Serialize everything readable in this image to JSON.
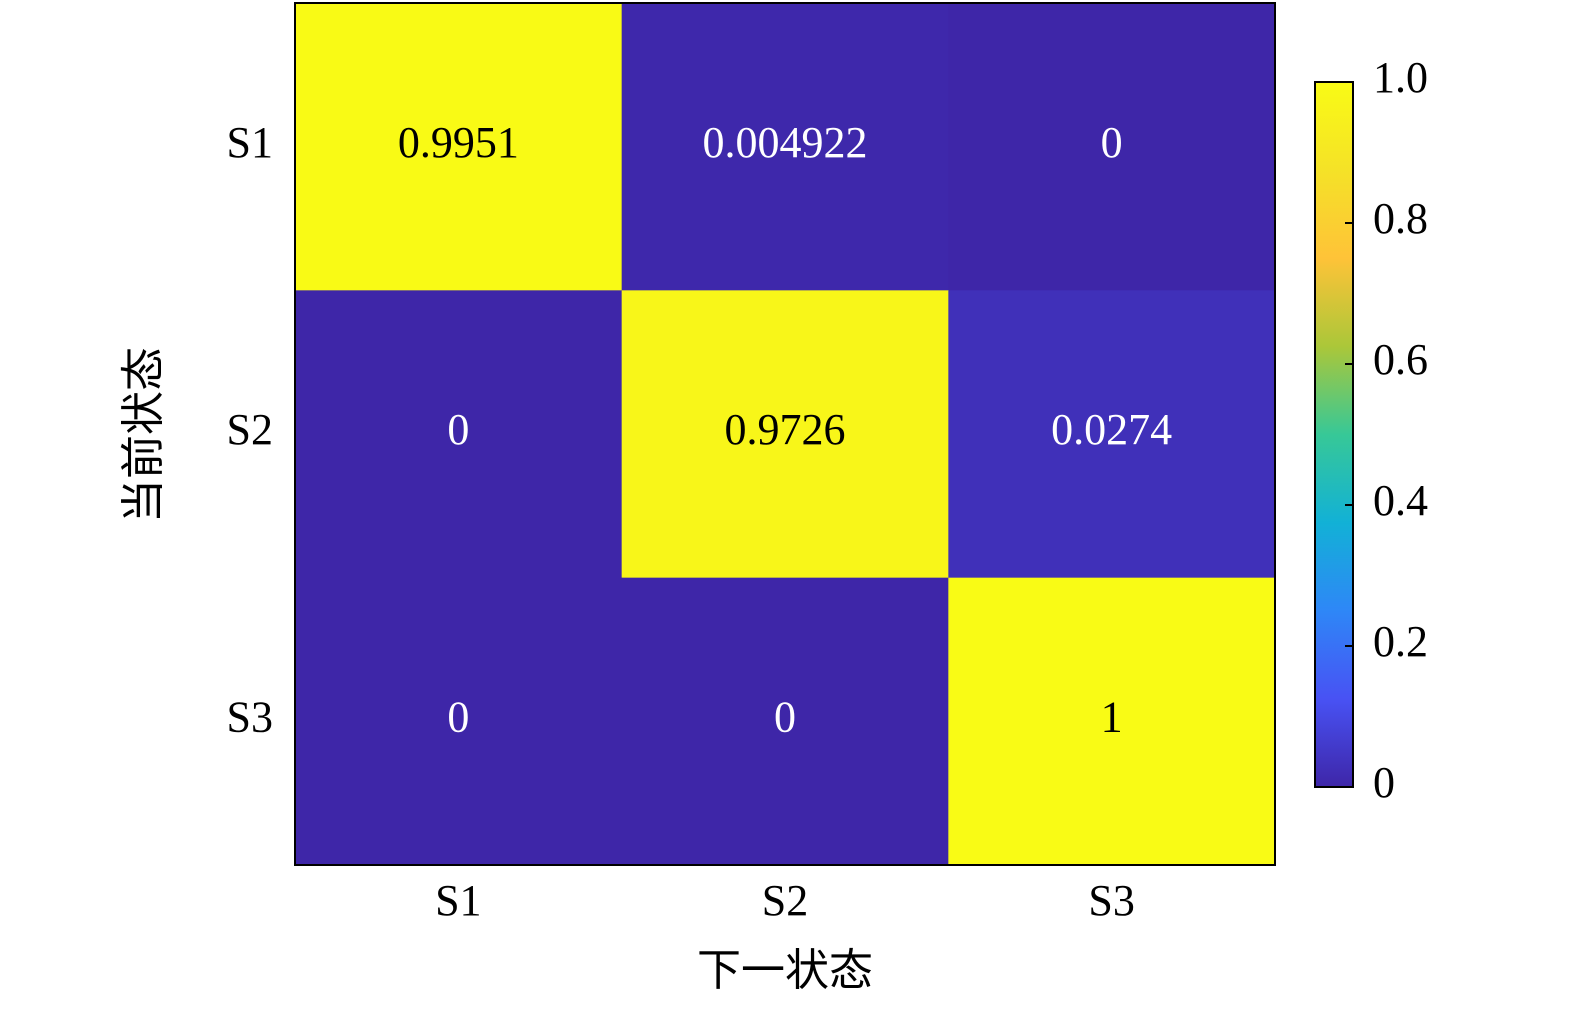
{
  "chart_data": {
    "type": "heatmap",
    "x_label": "下一状态",
    "y_label": "当前状态",
    "x": [
      "S1",
      "S2",
      "S3"
    ],
    "y": [
      "S1",
      "S2",
      "S3"
    ],
    "values": [
      [
        0.9951,
        0.004922,
        0
      ],
      [
        0,
        0.9726,
        0.0274
      ],
      [
        0,
        0,
        1
      ]
    ],
    "colormap": "parula",
    "clim": [
      0,
      1
    ],
    "cticks": [
      0,
      0.2,
      0.4,
      0.6,
      0.8,
      {
        "value": 1,
        "label": "1.0"
      }
    ]
  }
}
